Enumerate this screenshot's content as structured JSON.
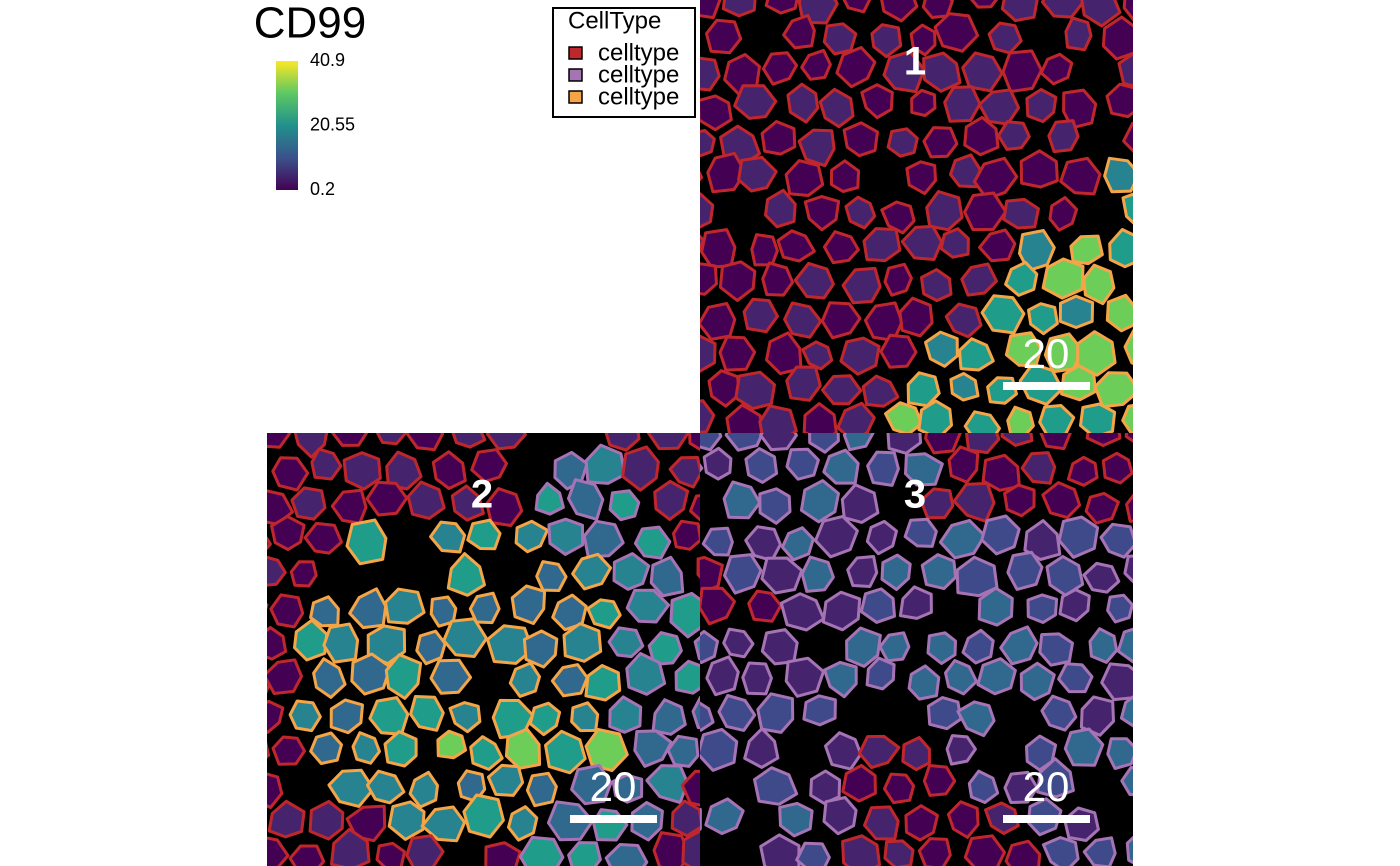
{
  "title": "CD99",
  "colorbar": {
    "ticks": [
      0.2,
      20.55,
      40.9
    ]
  },
  "legend": {
    "title": "CellType",
    "items": [
      {
        "label": "celltype",
        "color": "#c0272d"
      },
      {
        "label": "celltype",
        "color": "#a673b5"
      },
      {
        "label": "celltype",
        "color": "#f4a547"
      }
    ]
  },
  "panels": [
    {
      "label": "1",
      "scale_bar": "20"
    },
    {
      "label": "2",
      "scale_bar": "20"
    },
    {
      "label": "3",
      "scale_bar": "20"
    }
  ]
}
